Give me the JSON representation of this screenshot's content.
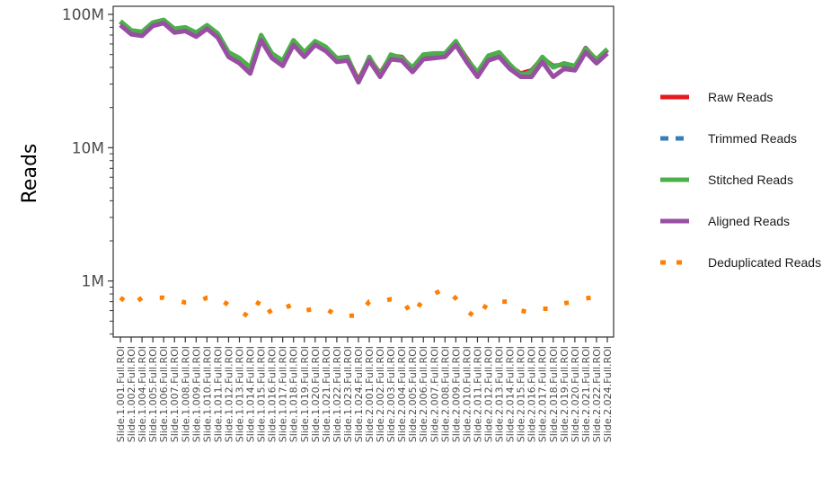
{
  "chart_data": {
    "type": "line",
    "title": "",
    "xlabel": "",
    "ylabel": "Reads",
    "y_scale": "log10",
    "ylim": [
      380000,
      115000000
    ],
    "y_ticks": [
      {
        "value": 1000000,
        "label": "1M"
      },
      {
        "value": 10000000,
        "label": "10M"
      },
      {
        "value": 100000000,
        "label": "100M"
      }
    ],
    "grid": false,
    "legend_position": "right",
    "categories": [
      "Slide.1.001.Full.ROI",
      "Slide.1.002.Full.ROI",
      "Slide.1.004.Full.ROI",
      "Slide.1.005.Full.ROI",
      "Slide.1.006.Full.ROI",
      "Slide.1.007.Full.ROI",
      "Slide.1.008.Full.ROI",
      "Slide.1.009.Full.ROI",
      "Slide.1.010.Full.ROI",
      "Slide.1.011.Full.ROI",
      "Slide.1.012.Full.ROI",
      "Slide.1.013.Full.ROI",
      "Slide.1.014.Full.ROI",
      "Slide.1.015.Full.ROI",
      "Slide.1.016.Full.ROI",
      "Slide.1.017.Full.ROI",
      "Slide.1.018.Full.ROI",
      "Slide.1.019.Full.ROI",
      "Slide.1.020.Full.ROI",
      "Slide.1.021.Full.ROI",
      "Slide.1.022.Full.ROI",
      "Slide.1.023.Full.ROI",
      "Slide.1.024.Full.ROI",
      "Slide.2.001.Full.ROI",
      "Slide.2.002.Full.ROI",
      "Slide.2.003.Full.ROI",
      "Slide.2.004.Full.ROI",
      "Slide.2.005.Full.ROI",
      "Slide.2.006.Full.ROI",
      "Slide.2.007.Full.ROI",
      "Slide.2.008.Full.ROI",
      "Slide.2.009.Full.ROI",
      "Slide.2.010.Full.ROI",
      "Slide.2.011.Full.ROI",
      "Slide.2.012.Full.ROI",
      "Slide.2.013.Full.ROI",
      "Slide.2.014.Full.ROI",
      "Slide.2.015.Full.ROI",
      "Slide.2.016.Full.ROI",
      "Slide.2.017.Full.ROI",
      "Slide.2.018.Full.ROI",
      "Slide.2.019.Full.ROI",
      "Slide.2.020.Full.ROI",
      "Slide.2.021.Full.ROI",
      "Slide.2.022.Full.ROI",
      "Slide.2.024.Full.ROI"
    ],
    "series": [
      {
        "name": "Raw Reads",
        "color": "#e41a1c",
        "dash": "solid",
        "values": [
          88000000,
          75000000,
          73000000,
          86000000,
          90000000,
          77000000,
          79000000,
          72000000,
          82000000,
          71000000,
          51000000,
          46000000,
          39000000,
          68000000,
          50000000,
          44000000,
          62000000,
          51000000,
          62000000,
          56000000,
          46000000,
          47000000,
          32000000,
          47000000,
          36000000,
          49000000,
          48000000,
          39000000,
          49000000,
          50000000,
          50000000,
          62000000,
          47000000,
          36000000,
          48000000,
          51000000,
          41000000,
          36000000,
          38000000,
          47000000,
          41000000,
          42000000,
          40000000,
          56000000,
          45000000,
          54000000
        ]
      },
      {
        "name": "Trimmed Reads",
        "color": "#377eb8",
        "dash": "6,6",
        "values": [
          88000000,
          75000000,
          73000000,
          86000000,
          90000000,
          77000000,
          79000000,
          72000000,
          82000000,
          71000000,
          51000000,
          46000000,
          39000000,
          68000000,
          50000000,
          44000000,
          62000000,
          51000000,
          62000000,
          56000000,
          46000000,
          47000000,
          32000000,
          47000000,
          36000000,
          49000000,
          48000000,
          39000000,
          49000000,
          50000000,
          50000000,
          62000000,
          47000000,
          36000000,
          48000000,
          51000000,
          41000000,
          36000000,
          38000000,
          47000000,
          41000000,
          42000000,
          40000000,
          56000000,
          45000000,
          54000000
        ]
      },
      {
        "name": "Stitched Reads",
        "color": "#4daf4a",
        "dash": "solid",
        "values": [
          89000000,
          76000000,
          74000000,
          87000000,
          91000000,
          78000000,
          80000000,
          73000000,
          83000000,
          72000000,
          52000000,
          47000000,
          40000000,
          70000000,
          51000000,
          45000000,
          64000000,
          52000000,
          63000000,
          57000000,
          47000000,
          48000000,
          31000000,
          48000000,
          35000000,
          50000000,
          47000000,
          40000000,
          50000000,
          51000000,
          51000000,
          63000000,
          46000000,
          37000000,
          49000000,
          52000000,
          42000000,
          35000000,
          37000000,
          48000000,
          40000000,
          43000000,
          41000000,
          55000000,
          46000000,
          55000000
        ]
      },
      {
        "name": "Aligned Reads",
        "color": "#984ea3",
        "dash": "solid",
        "values": [
          83000000,
          71000000,
          69000000,
          82000000,
          86000000,
          73000000,
          75000000,
          68000000,
          78000000,
          67000000,
          48000000,
          43000000,
          36000000,
          64000000,
          47000000,
          41000000,
          59000000,
          48000000,
          59000000,
          53000000,
          44000000,
          45000000,
          31000000,
          45000000,
          34000000,
          46000000,
          45000000,
          37000000,
          46000000,
          47000000,
          48000000,
          59000000,
          44000000,
          34000000,
          45000000,
          48000000,
          39000000,
          34000000,
          34000000,
          44000000,
          34000000,
          39000000,
          38000000,
          52000000,
          43000000,
          51000000
        ]
      },
      {
        "name": "Deduplicated Reads",
        "color": "#ff7f00",
        "dash": "dotted",
        "values": [
          750000,
          650000,
          750000,
          750000,
          750000,
          720000,
          690000,
          690000,
          750000,
          750000,
          660000,
          600000,
          530000,
          750000,
          560000,
          620000,
          670000,
          600000,
          620000,
          620000,
          550000,
          550000,
          550000,
          700000,
          700000,
          730000,
          730000,
          550000,
          730000,
          800000,
          880000,
          740000,
          600000,
          520000,
          700000,
          700000,
          700000,
          600000,
          580000,
          620000,
          620000,
          680000,
          700000,
          740000,
          760000,
          800000
        ]
      }
    ]
  }
}
